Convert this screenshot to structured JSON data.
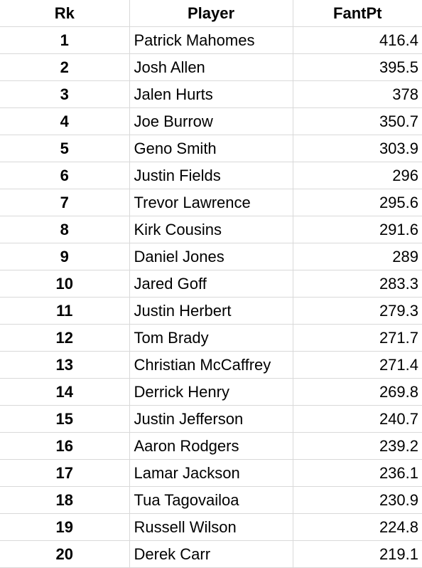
{
  "table": {
    "headers": {
      "rank": "Rk",
      "player": "Player",
      "points": "FantPt"
    },
    "rows": [
      {
        "rank": "1",
        "player": "Patrick Mahomes",
        "points": "416.4"
      },
      {
        "rank": "2",
        "player": "Josh Allen",
        "points": "395.5"
      },
      {
        "rank": "3",
        "player": "Jalen Hurts",
        "points": "378"
      },
      {
        "rank": "4",
        "player": "Joe Burrow",
        "points": "350.7"
      },
      {
        "rank": "5",
        "player": "Geno Smith",
        "points": "303.9"
      },
      {
        "rank": "6",
        "player": "Justin Fields",
        "points": "296"
      },
      {
        "rank": "7",
        "player": "Trevor Lawrence",
        "points": "295.6"
      },
      {
        "rank": "8",
        "player": "Kirk Cousins",
        "points": "291.6"
      },
      {
        "rank": "9",
        "player": "Daniel Jones",
        "points": "289"
      },
      {
        "rank": "10",
        "player": "Jared Goff",
        "points": "283.3"
      },
      {
        "rank": "11",
        "player": "Justin Herbert",
        "points": "279.3"
      },
      {
        "rank": "12",
        "player": "Tom Brady",
        "points": "271.7"
      },
      {
        "rank": "13",
        "player": "Christian McCaffrey",
        "points": "271.4"
      },
      {
        "rank": "14",
        "player": "Derrick Henry",
        "points": "269.8"
      },
      {
        "rank": "15",
        "player": "Justin Jefferson",
        "points": "240.7"
      },
      {
        "rank": "16",
        "player": "Aaron Rodgers",
        "points": "239.2"
      },
      {
        "rank": "17",
        "player": "Lamar Jackson",
        "points": "236.1"
      },
      {
        "rank": "18",
        "player": "Tua Tagovailoa",
        "points": "230.9"
      },
      {
        "rank": "19",
        "player": "Russell Wilson",
        "points": "224.8"
      },
      {
        "rank": "20",
        "player": "Derek Carr",
        "points": "219.1"
      }
    ]
  }
}
